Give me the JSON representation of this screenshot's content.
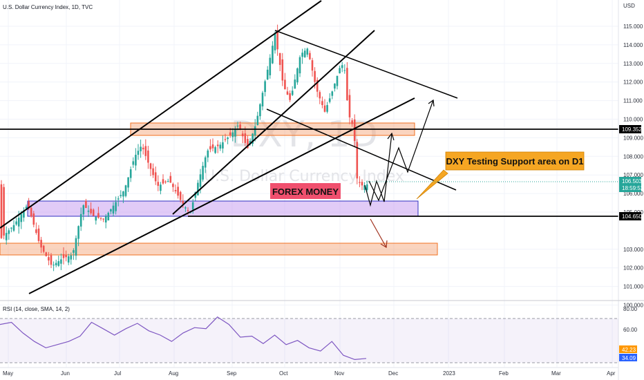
{
  "header": {
    "title": "U.S. Dollar Currency Index, 1D, TVC",
    "rsi_label": "RSI (14, close, SMA, 14, 2)"
  },
  "watermark": {
    "symbol": "DXY, 1D",
    "name": "U.S. Dollar Currency Index"
  },
  "annotations": {
    "callout": "DXY Testing Support area on D1",
    "brand": "FOREX MONEY"
  },
  "price_axis": {
    "currency": "USD",
    "ticks": [
      "115.000",
      "114.000",
      "113.000",
      "112.000",
      "111.000",
      "110.000",
      "109.000",
      "108.000",
      "107.000",
      "106.000",
      "105.000",
      "103.000",
      "102.000",
      "101.000",
      "100.000"
    ],
    "levels": [
      "109.352",
      "104.650"
    ],
    "last_price": "106.503",
    "countdown": "18:59:52"
  },
  "time_axis": {
    "ticks": [
      "May",
      "Jun",
      "Jul",
      "Aug",
      "Sep",
      "Oct",
      "Nov",
      "Dec",
      "2023",
      "Feb",
      "Mar",
      "Apr"
    ]
  },
  "rsi_axis": {
    "ticks": [
      "80.00",
      "60.00"
    ],
    "sma_value": "42.23",
    "rsi_value": "34.09"
  },
  "colors": {
    "up": "#26a69a",
    "down": "#ef5350",
    "zone_orange": "#f5a070",
    "zone_purple": "#c9a0f0",
    "callout_bg": "#f5a623",
    "brand_bg": "#f0506e",
    "rsi_line": "#2962ff"
  },
  "chart_data": {
    "type": "candlestick",
    "symbol": "DXY",
    "timeframe": "1D",
    "price_range": [
      100.0,
      115.9
    ],
    "key_levels": [
      109.352,
      104.65
    ],
    "last_price": 106.503,
    "price_series_approx": [
      [
        "May",
        103.6
      ],
      [
        "May",
        102.2
      ],
      [
        "Jun",
        102.2
      ],
      [
        "Jun",
        104.8
      ],
      [
        "Jul",
        105.8
      ],
      [
        "Jul",
        108.5
      ],
      [
        "Jul",
        106.8
      ],
      [
        "Aug",
        105.6
      ],
      [
        "Aug",
        104.8
      ],
      [
        "Aug",
        108.5
      ],
      [
        "Sep",
        109.8
      ],
      [
        "Sep",
        114.6
      ],
      [
        "Oct",
        111.0
      ],
      [
        "Oct",
        113.8
      ],
      [
        "Oct",
        111.2
      ],
      [
        "Oct",
        113.0
      ],
      [
        "Nov",
        110.0
      ],
      [
        "Nov",
        106.6
      ],
      [
        "Nov",
        106.5
      ]
    ],
    "rsi": {
      "period": 14,
      "range": [
        30,
        80
      ],
      "levels": [
        70,
        30
      ],
      "last": 34.09,
      "sma_last": 42.23,
      "series_approx": [
        66,
        68,
        58,
        50,
        44,
        47,
        50,
        55,
        68,
        62,
        56,
        62,
        67,
        60,
        56,
        50,
        58,
        63,
        62,
        73,
        66,
        54,
        55,
        48,
        56,
        47,
        51,
        44,
        41,
        50,
        37,
        33,
        34
      ]
    },
    "zones": [
      {
        "kind": "resistance",
        "low": 108.9,
        "high": 109.75
      },
      {
        "kind": "support",
        "low": 104.6,
        "high": 105.5
      },
      {
        "kind": "support",
        "low": 102.5,
        "high": 103.2
      }
    ]
  }
}
